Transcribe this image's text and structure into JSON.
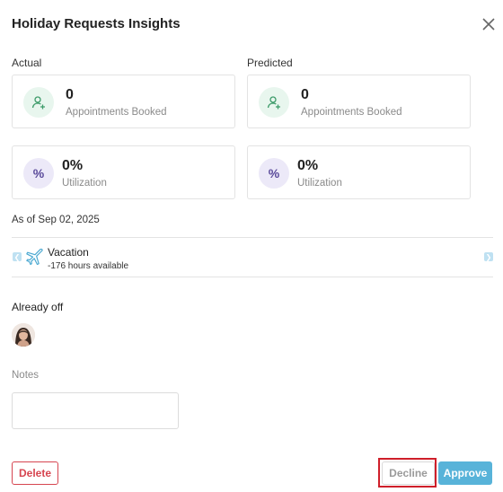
{
  "modal": {
    "title": "Holiday Requests Insights"
  },
  "actual": {
    "label": "Actual",
    "appointments": {
      "value": "0",
      "label": "Appointments Booked"
    },
    "utilization": {
      "value": "0%",
      "label": "Utilization",
      "symbol": "%"
    }
  },
  "predicted": {
    "label": "Predicted",
    "appointments": {
      "value": "0",
      "label": "Appointments Booked"
    },
    "utilization": {
      "value": "0%",
      "label": "Utilization",
      "symbol": "%"
    }
  },
  "as_of": "As of Sep 02, 2025",
  "leave": {
    "type": "Vacation",
    "available": "-176 hours available",
    "icon": "airplane-icon"
  },
  "already_off": {
    "label": "Already off"
  },
  "notes": {
    "label": "Notes",
    "value": ""
  },
  "buttons": {
    "delete": "Delete",
    "decline": "Decline",
    "approve": "Approve"
  },
  "colors": {
    "danger": "#d64550",
    "accent": "#58b3d9",
    "green_bg": "#e8f6ee",
    "purple_bg": "#ece9f8",
    "highlight": "#cf1f2a"
  }
}
